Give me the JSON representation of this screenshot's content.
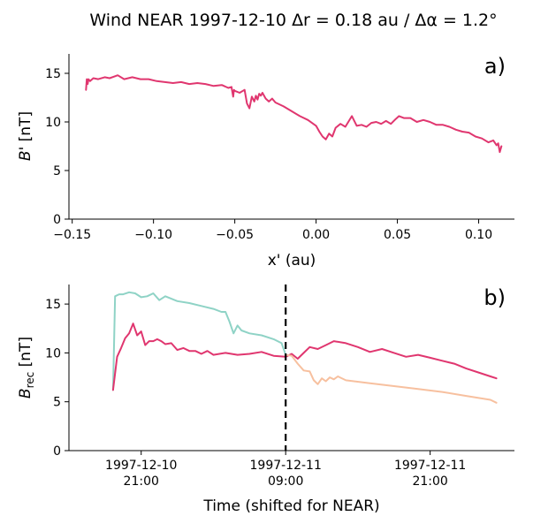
{
  "figure": {
    "title": "Wind NEAR 1997-12-10 Δr = 0.18 au / Δα = 1.2°"
  },
  "chart_data": [
    {
      "type": "line",
      "panel_label": "a)",
      "xlabel": "x' (au)",
      "ylabel_main": "B",
      "ylabel_rest": "' [nT]",
      "xlim": [
        -0.152,
        0.122
      ],
      "ylim": [
        0,
        17
      ],
      "xticks": [
        -0.15,
        -0.1,
        -0.05,
        0.0,
        0.05,
        0.1
      ],
      "xtick_labels": [
        "−0.15",
        "−0.10",
        "−0.05",
        "0.00",
        "0.05",
        "0.10"
      ],
      "yticks": [
        0,
        5,
        10,
        15
      ],
      "ytick_labels": [
        "0",
        "5",
        "10",
        "15"
      ],
      "grid": false,
      "series": [
        {
          "color": "#e0366f",
          "x": [
            -0.1415,
            -0.141,
            -0.1405,
            -0.14,
            -0.139,
            -0.137,
            -0.134,
            -0.13,
            -0.127,
            -0.122,
            -0.118,
            -0.113,
            -0.108,
            -0.103,
            -0.098,
            -0.093,
            -0.088,
            -0.083,
            -0.078,
            -0.073,
            -0.068,
            -0.063,
            -0.058,
            -0.054,
            -0.052,
            -0.051,
            -0.0505,
            -0.05,
            -0.047,
            -0.044,
            -0.0425,
            -0.041,
            -0.0395,
            -0.038,
            -0.037,
            -0.036,
            -0.035,
            -0.034,
            -0.033,
            -0.031,
            -0.029,
            -0.027,
            -0.025,
            -0.02,
            -0.015,
            -0.01,
            -0.005,
            0.0,
            0.002,
            0.004,
            0.006,
            0.008,
            0.01,
            0.012,
            0.015,
            0.018,
            0.022,
            0.025,
            0.028,
            0.031,
            0.034,
            0.037,
            0.04,
            0.043,
            0.046,
            0.049,
            0.051,
            0.054,
            0.058,
            0.062,
            0.066,
            0.07,
            0.074,
            0.078,
            0.082,
            0.086,
            0.09,
            0.094,
            0.098,
            0.102,
            0.106,
            0.109,
            0.111,
            0.112,
            0.113,
            0.114
          ],
          "y": [
            13.3,
            14.4,
            13.9,
            14.4,
            14.2,
            14.5,
            14.4,
            14.6,
            14.5,
            14.8,
            14.4,
            14.6,
            14.4,
            14.4,
            14.2,
            14.1,
            14.0,
            14.1,
            13.9,
            14.0,
            13.9,
            13.7,
            13.8,
            13.5,
            13.6,
            12.6,
            13.3,
            13.2,
            13.0,
            13.3,
            11.9,
            11.4,
            12.6,
            12.1,
            12.7,
            12.3,
            12.9,
            12.7,
            13.0,
            12.4,
            12.1,
            12.4,
            12.0,
            11.6,
            11.1,
            10.6,
            10.2,
            9.6,
            9.0,
            8.5,
            8.2,
            8.8,
            8.5,
            9.4,
            9.8,
            9.5,
            10.6,
            9.6,
            9.7,
            9.5,
            9.9,
            10.0,
            9.8,
            10.1,
            9.8,
            10.3,
            10.6,
            10.4,
            10.4,
            10.0,
            10.2,
            10.0,
            9.7,
            9.7,
            9.5,
            9.2,
            9.0,
            8.9,
            8.5,
            8.3,
            7.9,
            8.1,
            7.6,
            7.8,
            6.9,
            7.5
          ]
        }
      ]
    },
    {
      "type": "line",
      "panel_label": "b)",
      "xlabel": "Time (shifted for NEAR)",
      "ylabel_main": "B",
      "ylabel_sub": "rec",
      "ylabel_rest": " [nT]",
      "xlim": [
        "1997-12-10 15:00",
        "1997-12-12 04:00"
      ],
      "ylim": [
        0,
        17
      ],
      "xticks": [
        "1997-12-10 21:00",
        "1997-12-11 09:00",
        "1997-12-11 21:00"
      ],
      "xtick_labels": [
        [
          "1997-12-10",
          "21:00"
        ],
        [
          "1997-12-11",
          "09:00"
        ],
        [
          "1997-12-11",
          "21:00"
        ]
      ],
      "yticks": [
        0,
        5,
        10,
        15
      ],
      "ytick_labels": [
        "0",
        "5",
        "10",
        "15"
      ],
      "vline": "1997-12-11 09:00",
      "vline_style": "dashed",
      "grid": false,
      "series": [
        {
          "color": "#8fd3c6",
          "x": [
            "1997-12-10 18:40",
            "1997-12-10 18:50",
            "1997-12-10 19:10",
            "1997-12-10 19:30",
            "1997-12-10 20:00",
            "1997-12-10 20:30",
            "1997-12-10 21:00",
            "1997-12-10 21:30",
            "1997-12-10 22:00",
            "1997-12-10 22:30",
            "1997-12-10 23:00",
            "1997-12-11 00:00",
            "1997-12-11 01:00",
            "1997-12-11 02:00",
            "1997-12-11 03:00",
            "1997-12-11 03:40",
            "1997-12-11 04:00",
            "1997-12-11 04:20",
            "1997-12-11 04:40",
            "1997-12-11 05:00",
            "1997-12-11 05:20",
            "1997-12-11 06:00",
            "1997-12-11 07:00",
            "1997-12-11 08:00",
            "1997-12-11 08:40",
            "1997-12-11 09:00"
          ],
          "y": [
            6.2,
            15.8,
            16.0,
            16.0,
            16.2,
            16.1,
            15.7,
            15.8,
            16.1,
            15.4,
            15.8,
            15.3,
            15.1,
            14.8,
            14.5,
            14.2,
            14.2,
            13.2,
            12.0,
            12.8,
            12.3,
            12.0,
            11.8,
            11.4,
            11.0,
            9.8
          ]
        },
        {
          "color": "#e0366f",
          "x": [
            "1997-12-10 18:40",
            "1997-12-10 19:00",
            "1997-12-10 19:20",
            "1997-12-10 19:40",
            "1997-12-10 20:00",
            "1997-12-10 20:20",
            "1997-12-10 20:40",
            "1997-12-10 21:00",
            "1997-12-10 21:20",
            "1997-12-10 21:40",
            "1997-12-10 22:00",
            "1997-12-10 22:20",
            "1997-12-10 22:40",
            "1997-12-10 23:00",
            "1997-12-10 23:30",
            "1997-12-11 00:00",
            "1997-12-11 00:30",
            "1997-12-11 01:00",
            "1997-12-11 01:30",
            "1997-12-11 02:00",
            "1997-12-11 02:30",
            "1997-12-11 03:00",
            "1997-12-11 04:00",
            "1997-12-11 05:00",
            "1997-12-11 06:00",
            "1997-12-11 07:00",
            "1997-12-11 08:00",
            "1997-12-11 09:00",
            "1997-12-11 09:30",
            "1997-12-11 10:00",
            "1997-12-11 10:30",
            "1997-12-11 11:00",
            "1997-12-11 11:40",
            "1997-12-11 12:20",
            "1997-12-11 13:00",
            "1997-12-11 14:00",
            "1997-12-11 15:00",
            "1997-12-11 16:00",
            "1997-12-11 17:00",
            "1997-12-11 18:00",
            "1997-12-11 19:00",
            "1997-12-11 20:00",
            "1997-12-11 21:00",
            "1997-12-11 22:00",
            "1997-12-11 23:00",
            "1997-12-12 00:00",
            "1997-12-12 01:00",
            "1997-12-12 02:00",
            "1997-12-12 02:30"
          ],
          "y": [
            6.2,
            9.6,
            10.5,
            11.5,
            12.0,
            13.0,
            11.8,
            12.2,
            10.8,
            11.2,
            11.2,
            11.4,
            11.2,
            10.9,
            11.0,
            10.3,
            10.5,
            10.2,
            10.2,
            9.9,
            10.2,
            9.8,
            10.0,
            9.8,
            9.9,
            10.1,
            9.7,
            9.6,
            9.9,
            9.4,
            10.0,
            10.6,
            10.4,
            10.8,
            11.2,
            11.0,
            10.6,
            10.1,
            10.4,
            10.0,
            9.6,
            9.8,
            9.5,
            9.2,
            8.9,
            8.4,
            8.0,
            7.6,
            7.4
          ]
        },
        {
          "color": "#f7c09f",
          "x": [
            "1997-12-11 09:00",
            "1997-12-11 09:30",
            "1997-12-11 10:00",
            "1997-12-11 10:30",
            "1997-12-11 11:00",
            "1997-12-11 11:20",
            "1997-12-11 11:40",
            "1997-12-11 12:00",
            "1997-12-11 12:20",
            "1997-12-11 12:40",
            "1997-12-11 13:00",
            "1997-12-11 13:20",
            "1997-12-11 14:00",
            "1997-12-11 16:00",
            "1997-12-11 18:00",
            "1997-12-11 20:00",
            "1997-12-11 22:00",
            "1997-12-12 00:00",
            "1997-12-12 02:00",
            "1997-12-12 02:30"
          ],
          "y": [
            9.8,
            9.7,
            8.9,
            8.2,
            8.1,
            7.2,
            6.8,
            7.4,
            7.1,
            7.5,
            7.3,
            7.6,
            7.2,
            6.9,
            6.6,
            6.3,
            6.0,
            5.6,
            5.2,
            4.9
          ]
        }
      ]
    }
  ]
}
